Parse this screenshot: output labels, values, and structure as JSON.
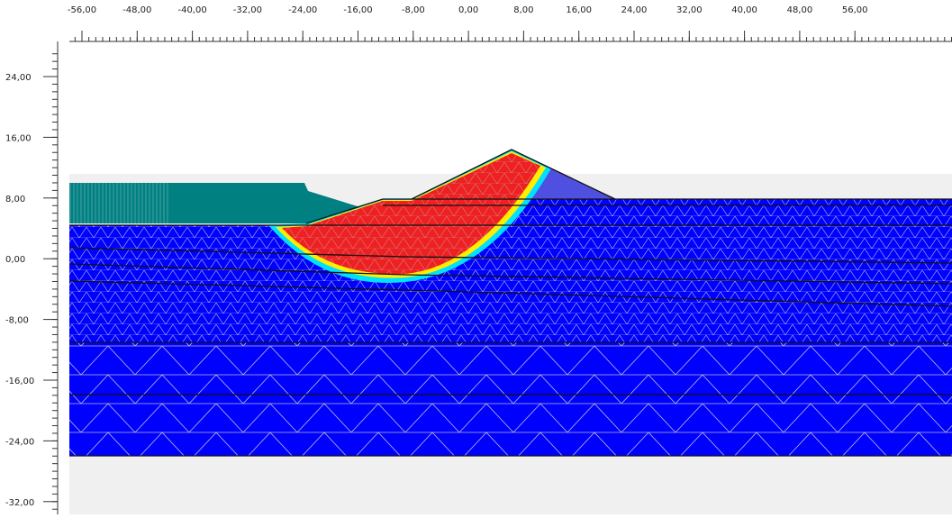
{
  "ruler": {
    "x_labels": [
      "-56,00",
      "-48,00",
      "-40,00",
      "-32,00",
      "-24,00",
      "-16,00",
      "-8,00",
      "0,00",
      "8,00",
      "16,00",
      "24,00",
      "32,00",
      "40,00",
      "48,00",
      "56,00"
    ],
    "y_labels": [
      "24,00",
      "16,00",
      "8,00",
      "0,00",
      "-8,00",
      "-16,00",
      "-24,00",
      "-32,00"
    ]
  }
}
